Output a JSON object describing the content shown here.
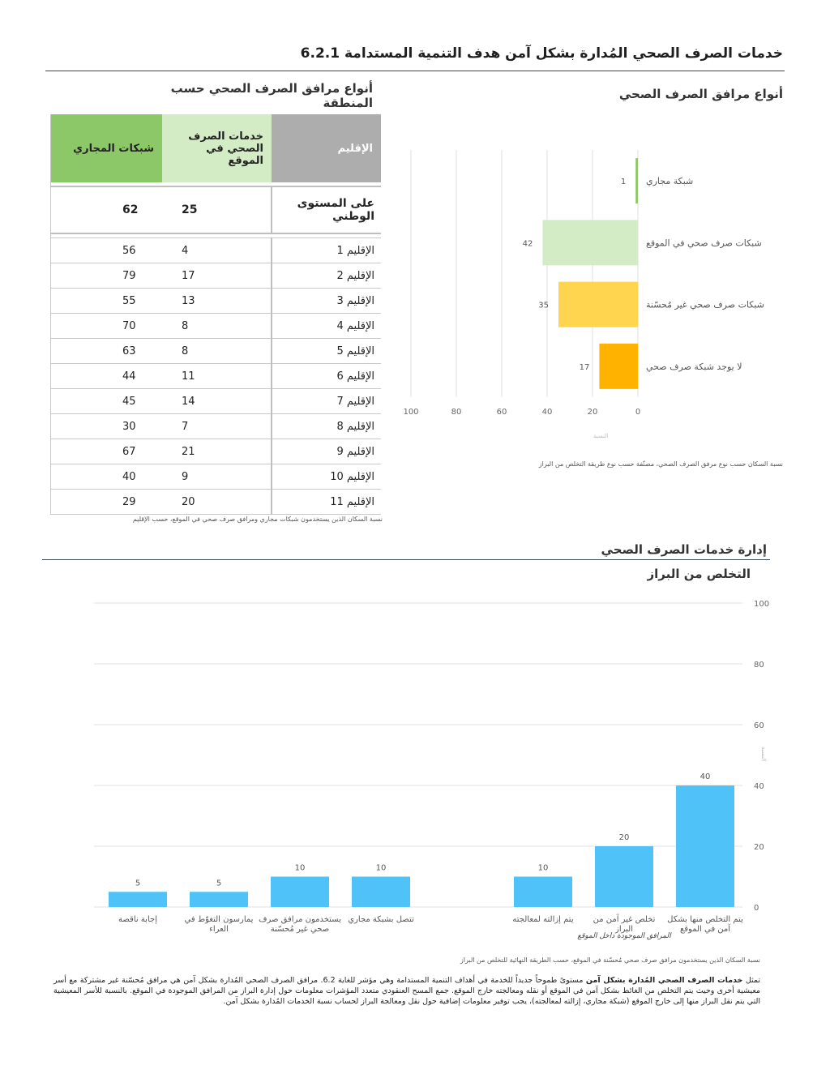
{
  "page": {
    "title": "خدمات الصرف الصحي المُدارة بشكل آمن هدف التنمية المستدامة 6.2.1",
    "types_heading": "أنواع مرافق الصرف الصحي",
    "region_heading": "أنواع مرافق الصرف الصحي حسب المنطقة",
    "manage_heading": "إدارة خدمات الصرف الصحي",
    "body_text_bold": "خدمات الصرف الصحي المُدارة بشكل آمن",
    "body_text_pre": "تمثل ",
    "body_text": " مستوىً طموحاً جديداً للخدمة في أهداف التنمية المستدامة وهي مؤشر للغاية 6.2. مرافق الصرف الصحي المُدارة بشكل آمن هي مرافق مُحسّنة غير مشتركة مع أسر معيشية أخرى وحيث يتم التخلص من الغائط بشكل آمن في الموقع أو نقله ومعالجته خارج الموقع. جمع المسح العنقودي متعدد المؤشرات معلومات حول إدارة البراز من المرافق الموجودة في الموقع. بالنسبة للأسر المعيشية التي يتم نقل البراز منها إلى خارج الموقع (شبكة مجاري، إزالته لمعالجته)، يجب توفير معلومات إضافية حول نقل ومعالجة البراز لحساب نسبة الخدمات المُدارة بشكل آمن."
  },
  "region_table": {
    "headers": [
      "الإقليم",
      "خدمات الصرف الصحي في الموقع",
      "شبكات المجاري"
    ],
    "national": {
      "label": "على المستوى الوطني",
      "onsite": "25",
      "sewer": "62"
    },
    "rows": [
      {
        "region": "الإقليم 1",
        "onsite": "4",
        "sewer": "56"
      },
      {
        "region": "الإقليم 2",
        "onsite": "17",
        "sewer": "79"
      },
      {
        "region": "الإقليم 3",
        "onsite": "13",
        "sewer": "55"
      },
      {
        "region": "الإقليم 4",
        "onsite": "8",
        "sewer": "70"
      },
      {
        "region": "الإقليم 5",
        "onsite": "8",
        "sewer": "63"
      },
      {
        "region": "الإقليم 6",
        "onsite": "11",
        "sewer": "44"
      },
      {
        "region": "الإقليم 7",
        "onsite": "14",
        "sewer": "45"
      },
      {
        "region": "الإقليم 8",
        "onsite": "7",
        "sewer": "30"
      },
      {
        "region": "الإقليم 9",
        "onsite": "21",
        "sewer": "67"
      },
      {
        "region": "الإقليم 10",
        "onsite": "9",
        "sewer": "40"
      },
      {
        "region": "الإقليم 11",
        "onsite": "20",
        "sewer": "29"
      }
    ],
    "caption": "نسبة السكان الذين يستخدمون شبكات مجاري ومرافق صرف صحي في الموقع، حسب الإقليم"
  },
  "chart_data": [
    {
      "type": "bar",
      "orientation": "horizontal",
      "title": "أنواع مرافق الصرف الصحي",
      "categories": [
        "شبكة مجاري",
        "شبكات صرف صحي في الموقع",
        "شبكات صرف صحي غير مُحسّنة",
        "لا يوجد شبكة صرف صحي"
      ],
      "values": [
        1,
        42,
        35,
        17
      ],
      "colors": [
        "#8cc867",
        "#d4ecc6",
        "#ffd54f",
        "#ffb300"
      ],
      "xlim": [
        0,
        100
      ],
      "xticks": [
        0,
        20,
        40,
        60,
        80,
        100
      ],
      "xlabel": "النسبة",
      "caption": "نسبة السكان حسب نوع مرفق الصرف الصحي، مصنّفة حسب نوع طريقة التخلص من البراز"
    },
    {
      "type": "bar",
      "orientation": "vertical",
      "title": "التخلص من البراز",
      "categories": [
        "يتم التخلص منها بشكل آمن في الموقع",
        "تخلص غير آمن من البراز",
        "يتم إزالته لمعالجته",
        "",
        "تتصل بشبكة مجاري",
        "يستخدمون مرافق صرف صحي غير مُحسّنة",
        "يمارسون التغوّط في العراء",
        "إجابة ناقصة"
      ],
      "values": [
        40,
        20,
        10,
        null,
        10,
        10,
        5,
        5
      ],
      "color": "#4fc3f7",
      "ylim": [
        0,
        100
      ],
      "yticks": [
        0,
        20,
        40,
        60,
        80,
        100
      ],
      "ylabel": "النسبة",
      "group_label": "المرافق الموجودة داخل الموقع",
      "caption": "نسبة السكان الذين يستخدمون مرافق صرف صحي مُحسّنة في الموقع، حسب الطريقة النهائية للتخلص من البراز"
    }
  ]
}
